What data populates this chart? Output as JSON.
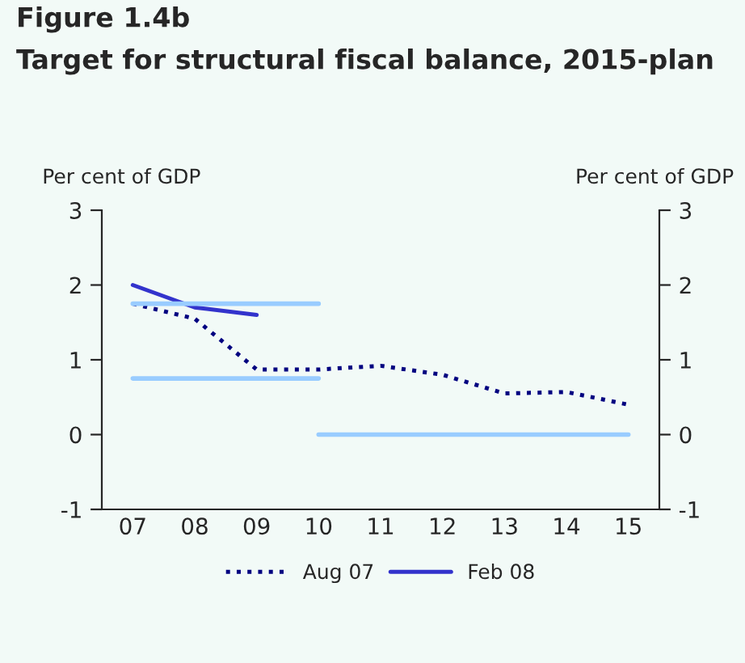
{
  "chart_data": {
    "type": "line",
    "title": "Figure 1.4b",
    "subtitle": "Target for structural fiscal balance, 2015-plan",
    "ylabel": "Per cent of GDP",
    "y2label": "Per cent of GDP",
    "categories": [
      "07",
      "08",
      "09",
      "10",
      "11",
      "12",
      "13",
      "14",
      "15"
    ],
    "series": [
      {
        "name": "Aug 07",
        "color": "#000080",
        "line_style": "dotted",
        "values": [
          1.75,
          1.55,
          0.87,
          0.87,
          0.92,
          0.8,
          0.55,
          0.57,
          0.4
        ]
      },
      {
        "name": "Feb 08",
        "color": "#3333cc",
        "line_style": "solid",
        "values": [
          2.0,
          1.7,
          1.6,
          null,
          null,
          null,
          null,
          null,
          null
        ]
      },
      {
        "color": "#99ccff",
        "line_style": "solid",
        "values": [
          1.75,
          1.75,
          1.75,
          1.75,
          null,
          null,
          null,
          null,
          null
        ]
      },
      {
        "color": "#99ccff",
        "line_style": "solid",
        "values": [
          0.75,
          0.75,
          0.75,
          0.75,
          null,
          null,
          null,
          null,
          null
        ]
      },
      {
        "color": "#99ccff",
        "line_style": "solid",
        "values": [
          null,
          null,
          null,
          0,
          0,
          0,
          0,
          0,
          0
        ]
      }
    ],
    "ylim": [
      -1,
      3
    ],
    "yticks": [
      -1,
      0,
      1,
      2,
      3
    ],
    "y2lim": [
      -1,
      3
    ],
    "y2ticks": [
      -1,
      0,
      1,
      2,
      3
    ],
    "grid": false,
    "legend": "bottom",
    "marker": "none"
  }
}
